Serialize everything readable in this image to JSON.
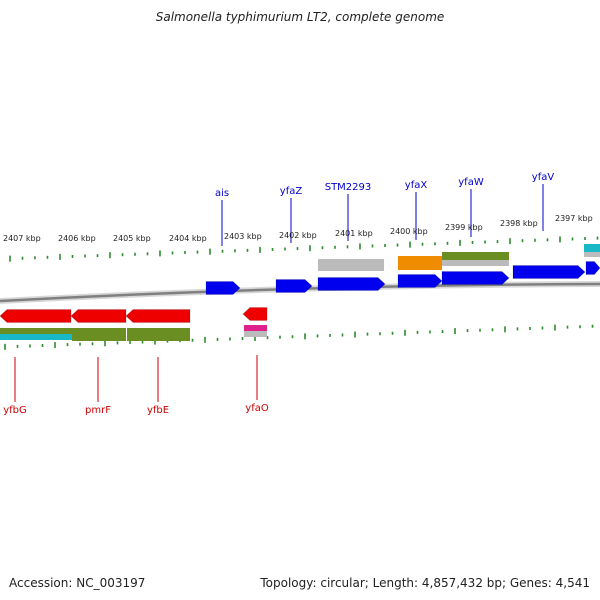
{
  "title": "Salmonella typhimurium LT2, complete genome",
  "footer": {
    "accession": "Accession: NC_003197",
    "summary": "Topology: circular; Length: 4,857,432 bp; Genes: 4,541"
  },
  "colors": {
    "forward_gene": "#0000ee",
    "reverse_gene": "#ee0000",
    "forward_label": "#0000cc",
    "reverse_label": "#cc0000",
    "tick": "#2e8b2e",
    "backbone": "#888888",
    "olive_feature": "#6b8e23",
    "gray_feature": "#bbbbbb",
    "orange_feature": "#f08c00",
    "teal_feature": "#18b8c8",
    "magenta_feature": "#e0208a"
  },
  "scale_labels": [
    "2407 kbp",
    "2406 kbp",
    "2405 kbp",
    "2404 kbp",
    "2403 kbp",
    "2402 kbp",
    "2401 kbp",
    "2400 kbp",
    "2399 kbp",
    "2398 kbp",
    "2397 kbp"
  ],
  "forward_gene_labels": [
    "ais",
    "yfaZ",
    "STM2293",
    "yfaX",
    "yfaW",
    "yfaV"
  ],
  "reverse_gene_labels": [
    "yfbG",
    "pmrF",
    "yfbE",
    "yfaO"
  ]
}
